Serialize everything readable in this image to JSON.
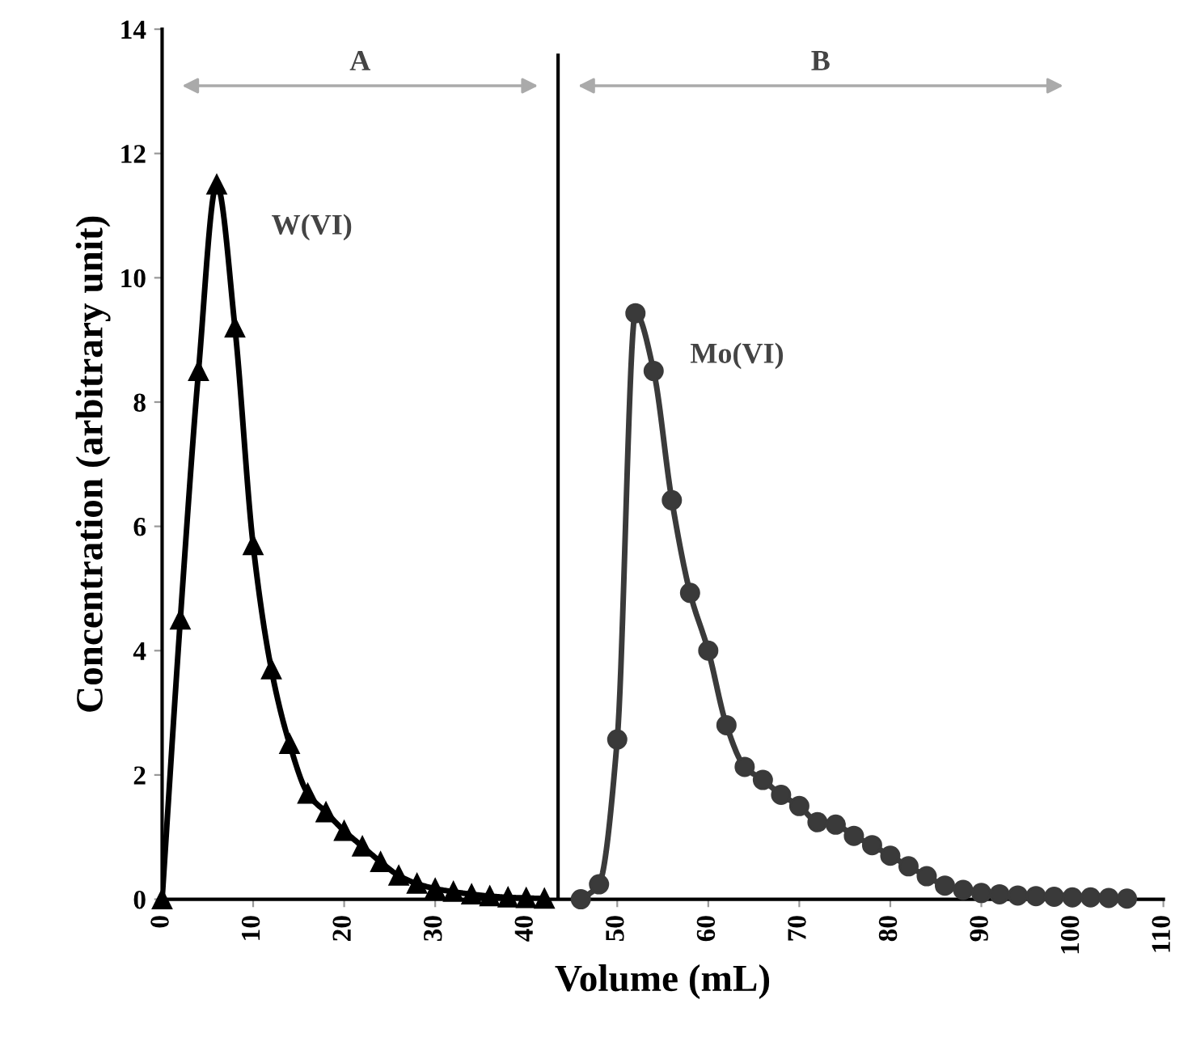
{
  "chart_data": {
    "type": "line",
    "xlabel": "Volume (mL)",
    "ylabel": "Concentration (arbitrary unit)",
    "xlim": [
      0,
      110
    ],
    "xticks": [
      0,
      10,
      20,
      30,
      40,
      50,
      60,
      70,
      80,
      90,
      100,
      110
    ],
    "ylim": [
      0,
      14
    ],
    "yticks": [
      0,
      2,
      4,
      6,
      8,
      10,
      12,
      14
    ],
    "grid": false,
    "legend": false,
    "series": [
      {
        "name": "W(VI)",
        "color": "#000000",
        "marker": "triangle",
        "x": [
          0,
          2,
          4,
          6,
          8,
          10,
          12,
          14,
          16,
          18,
          20,
          22,
          24,
          26,
          28,
          30,
          32,
          34,
          36,
          38,
          40,
          42
        ],
        "values": [
          0,
          4.5,
          8.5,
          11.5,
          9.2,
          5.7,
          3.7,
          2.5,
          1.7,
          1.4,
          1.1,
          0.85,
          0.6,
          0.38,
          0.25,
          0.17,
          0.12,
          0.08,
          0.05,
          0.03,
          0.02,
          0.01
        ]
      },
      {
        "name": "Mo(VI)",
        "color": "#3a3a3a",
        "marker": "circle",
        "x": [
          46,
          48,
          50,
          52,
          54,
          56,
          58,
          60,
          62,
          64,
          66,
          68,
          70,
          72,
          74,
          76,
          78,
          80,
          82,
          84,
          86,
          88,
          90,
          92,
          94,
          96,
          98,
          100,
          102,
          104,
          106
        ],
        "values": [
          0,
          0.24,
          2.57,
          9.43,
          8.5,
          6.42,
          4.93,
          4.0,
          2.8,
          2.13,
          1.92,
          1.68,
          1.5,
          1.24,
          1.2,
          1.02,
          0.87,
          0.7,
          0.53,
          0.37,
          0.22,
          0.15,
          0.1,
          0.08,
          0.06,
          0.05,
          0.04,
          0.03,
          0.03,
          0.02,
          0.01
        ]
      }
    ],
    "ref_lines": [
      {
        "axis": "x",
        "value": 43.5,
        "color": "#000000",
        "line_style": "solid"
      }
    ],
    "annotations": [
      "A",
      "B"
    ]
  }
}
